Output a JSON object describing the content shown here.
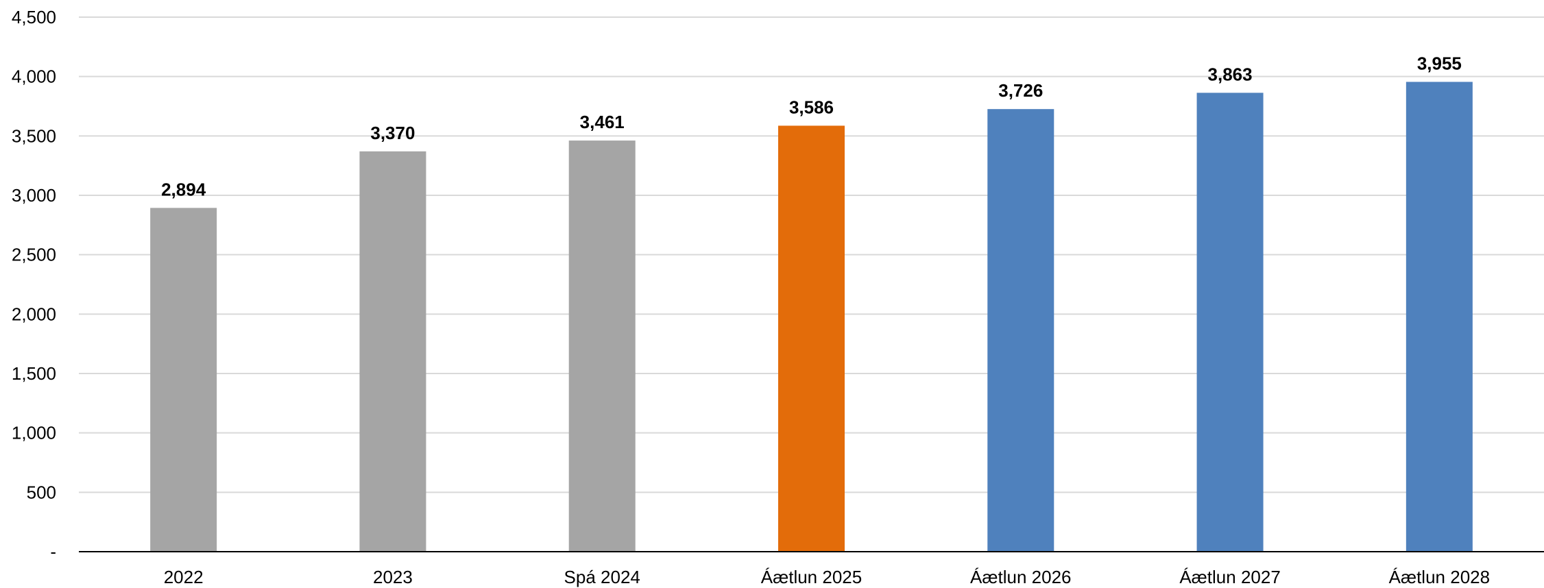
{
  "chart_data": {
    "type": "bar",
    "title": "",
    "xlabel": "",
    "ylabel": "",
    "ylim": [
      0,
      4500
    ],
    "yticks": [
      0,
      500,
      1000,
      1500,
      2000,
      2500,
      3000,
      3500,
      4000,
      4500
    ],
    "ytick_labels": [
      "-",
      "500",
      "1,000",
      "1,500",
      "2,000",
      "2,500",
      "3,000",
      "3,500",
      "4,000",
      "4,500"
    ],
    "grid": true,
    "legend": "none",
    "categories": [
      "2022",
      "2023",
      "Spá 2024",
      "Áætlun 2025",
      "Áætlun 2026",
      "Áætlun 2027",
      "Áætlun 2028"
    ],
    "values": [
      2894,
      3370,
      3461,
      3586,
      3726,
      3863,
      3955
    ],
    "value_labels": [
      "2,894",
      "3,370",
      "3,461",
      "3,586",
      "3,726",
      "3,863",
      "3,955"
    ],
    "bar_colors": [
      "#a5a5a5",
      "#a5a5a5",
      "#a5a5a5",
      "#e36c0a",
      "#4f81bd",
      "#4f81bd",
      "#4f81bd"
    ]
  }
}
